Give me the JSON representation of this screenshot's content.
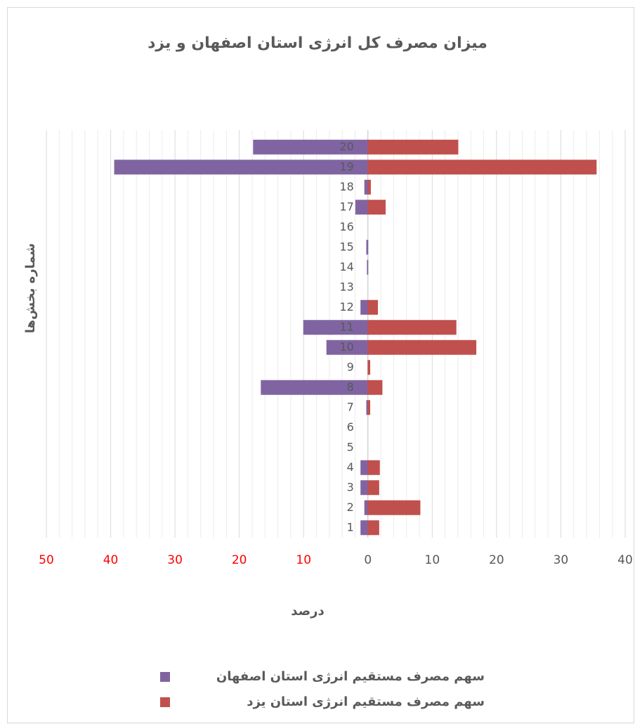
{
  "chart_data": {
    "type": "butterfly-bar",
    "title": "میزان مصرف کل انرژی استان اصفهان و یزد",
    "x_label": "درصد",
    "y_label": "شماره بخش‌ها",
    "categories": [
      "1",
      "2",
      "3",
      "4",
      "5",
      "6",
      "7",
      "8",
      "9",
      "10",
      "11",
      "12",
      "13",
      "14",
      "15",
      "16",
      "17",
      "18",
      "19",
      "20"
    ],
    "series": [
      {
        "name": "سهم مصرف مستقیم انرژی استان اصفهان",
        "color": "#8064a2",
        "values": [
          -1.1,
          -0.5,
          -1.1,
          -1.1,
          0,
          0,
          -0.2,
          -16.6,
          0,
          -6.4,
          -10,
          -1.1,
          0,
          -0.1,
          -0.2,
          0,
          -1.9,
          -0.5,
          -39.4,
          -17.8
        ]
      },
      {
        "name": "سهم مصرف مستقیم انرژی استان یزد",
        "color": "#c0504d",
        "values": [
          1.7,
          8.1,
          1.7,
          1.8,
          0,
          0,
          0.3,
          2.2,
          0.3,
          16.8,
          13.7,
          1.5,
          0,
          0,
          0,
          0,
          2.7,
          0.4,
          35.5,
          14.0
        ]
      }
    ],
    "xlim": [
      -50,
      40
    ],
    "xticks": [
      {
        "value": -50,
        "label": "50"
      },
      {
        "value": -40,
        "label": "40"
      },
      {
        "value": -30,
        "label": "30"
      },
      {
        "value": -20,
        "label": "20"
      },
      {
        "value": -10,
        "label": "10"
      },
      0,
      10,
      20,
      30,
      40
    ],
    "negative_tick_label_color": "#ff0000",
    "positive_tick_label_color": "#595959",
    "grid": true,
    "minor_grid_step": 2,
    "legend": "bottom"
  }
}
